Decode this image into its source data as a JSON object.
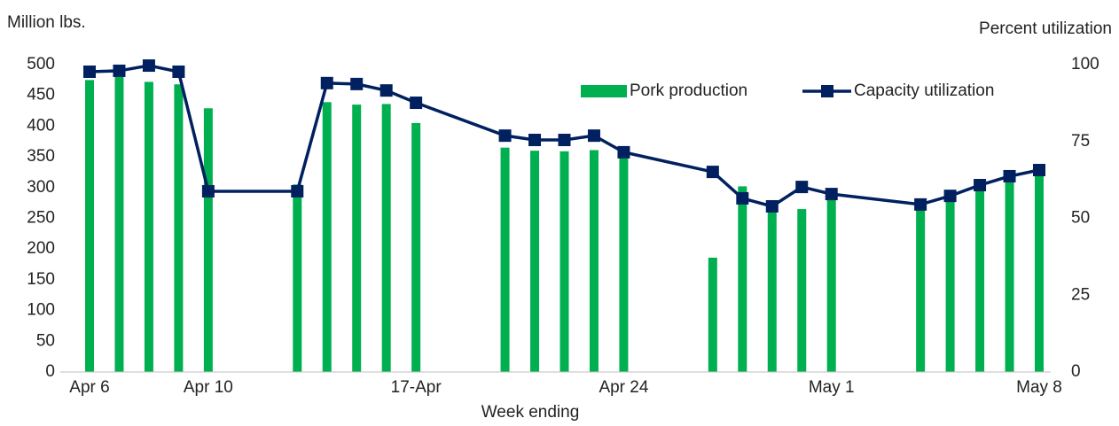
{
  "chart_data": {
    "type": "bar-line",
    "y_axis_label": "Million lbs.",
    "y2_axis_label": "Percent utilization",
    "x_axis_label": "Week ending",
    "x": [
      0,
      1,
      2,
      3,
      4,
      7,
      8,
      9,
      10,
      11,
      14,
      15,
      16,
      17,
      18,
      21,
      22,
      23,
      24,
      25,
      28,
      29,
      30,
      31,
      32
    ],
    "xlim": [
      0,
      32
    ],
    "xticks": [
      {
        "value": 0,
        "label": "Apr 6"
      },
      {
        "value": 4,
        "label": "Apr 10"
      },
      {
        "value": 11,
        "label": "17-Apr"
      },
      {
        "value": 18,
        "label": "Apr 24"
      },
      {
        "value": 25,
        "label": "May 1"
      },
      {
        "value": 32,
        "label": "May 8"
      }
    ],
    "ylim": [
      0,
      500
    ],
    "yticks": [
      0,
      50,
      100,
      150,
      200,
      250,
      300,
      350,
      400,
      450,
      500
    ],
    "y2lim": [
      0,
      100
    ],
    "y2ticks": [
      0,
      25,
      50,
      75,
      100
    ],
    "legend": "top-right",
    "series": [
      {
        "name": "Pork production",
        "type": "bar",
        "color": "#00b050",
        "values": [
          475,
          483,
          472,
          468,
          429,
          305,
          439,
          435,
          436,
          405,
          365,
          360,
          359,
          361,
          350,
          186,
          302,
          268,
          265,
          288,
          268,
          295,
          302,
          327,
          328
        ]
      },
      {
        "name": "Capacity utilization",
        "type": "line",
        "axis": "y2",
        "color": "#002060",
        "values": [
          97.7,
          98,
          99.7,
          97.7,
          58.8,
          58.8,
          94,
          93.7,
          91.6,
          87.6,
          76.9,
          75.5,
          75.5,
          76.9,
          71.5,
          65.1,
          56.5,
          53.9,
          60.2,
          57.9,
          54.5,
          57.3,
          60.8,
          63.7,
          65.7
        ]
      }
    ]
  }
}
